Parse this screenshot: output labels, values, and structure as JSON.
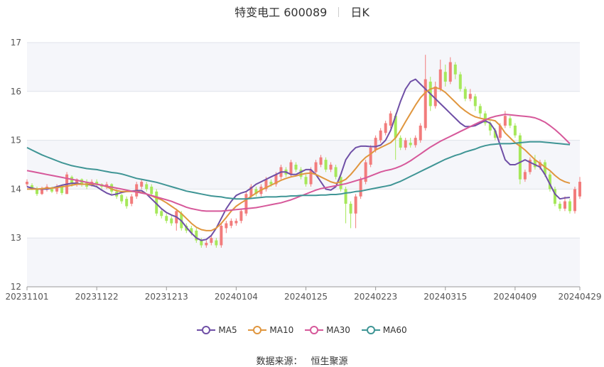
{
  "header": {
    "title": "特变电工 600089",
    "period": "日K"
  },
  "legend": {
    "ma5": "MA5",
    "ma10": "MA10",
    "ma30": "MA30",
    "ma60": "MA60"
  },
  "source": {
    "label": "数据来源：",
    "name": "恒生聚源"
  },
  "colors": {
    "up": "#f27c7c",
    "down": "#a6e85a",
    "ma5": "#6f4fa6",
    "ma10": "#e0963e",
    "ma30": "#d6589a",
    "ma60": "#3f9595"
  },
  "chart_data": {
    "type": "candlestick",
    "title": "特变电工 600089",
    "ylim": [
      12,
      17
    ],
    "yticks": [
      12,
      13,
      14,
      15,
      16,
      17
    ],
    "xticks": [
      "20231101",
      "20231122",
      "20231213",
      "20240104",
      "20240125",
      "20240223",
      "20240315",
      "20240409",
      "20240429"
    ],
    "x_tick_index": [
      0,
      14,
      28,
      42,
      56,
      70,
      84,
      98,
      111
    ],
    "series": [
      {
        "name": "MA5",
        "values": [
          14.05,
          14.02,
          14.0,
          14.0,
          14.0,
          14.02,
          14.05,
          14.08,
          14.1,
          14.12,
          14.12,
          14.1,
          14.1,
          14.08,
          14.05,
          13.98,
          13.92,
          13.88,
          13.9,
          13.93,
          13.95,
          13.96,
          13.97,
          13.97,
          13.9,
          13.8,
          13.7,
          13.6,
          13.52,
          13.47,
          13.43,
          13.35,
          13.22,
          13.1,
          13.0,
          12.95,
          12.97,
          13.05,
          13.2,
          13.4,
          13.6,
          13.75,
          13.87,
          13.92,
          13.95,
          14.02,
          14.1,
          14.15,
          14.2,
          14.25,
          14.3,
          14.35,
          14.35,
          14.3,
          14.3,
          14.35,
          14.4,
          14.4,
          14.3,
          14.15,
          14.0,
          13.98,
          14.05,
          14.3,
          14.6,
          14.75,
          14.85,
          14.88,
          14.88,
          14.87,
          14.87,
          14.9,
          15.0,
          15.2,
          15.5,
          15.8,
          16.05,
          16.2,
          16.25,
          16.15,
          16.05,
          15.95,
          15.85,
          15.75,
          15.65,
          15.55,
          15.45,
          15.35,
          15.28,
          15.28,
          15.3,
          15.35,
          15.4,
          15.35,
          15.2,
          14.9,
          14.6,
          14.5,
          14.5,
          14.55,
          14.6,
          14.55,
          14.5,
          14.45,
          14.3,
          14.1,
          13.9,
          13.8,
          13.82,
          13.83
        ]
      },
      {
        "name": "MA10",
        "values": [
          14.0,
          14.0,
          14.0,
          14.01,
          14.02,
          14.02,
          14.03,
          14.05,
          14.06,
          14.08,
          14.1,
          14.1,
          14.1,
          14.1,
          14.1,
          14.08,
          14.05,
          14.0,
          13.97,
          13.95,
          13.95,
          13.95,
          13.95,
          13.93,
          13.9,
          13.86,
          13.82,
          13.78,
          13.72,
          13.65,
          13.58,
          13.5,
          13.4,
          13.3,
          13.22,
          13.17,
          13.15,
          13.15,
          13.2,
          13.3,
          13.42,
          13.55,
          13.65,
          13.72,
          13.78,
          13.85,
          13.92,
          13.98,
          14.03,
          14.08,
          14.13,
          14.18,
          14.22,
          14.25,
          14.27,
          14.3,
          14.32,
          14.33,
          14.3,
          14.25,
          14.2,
          14.15,
          14.12,
          14.15,
          14.2,
          14.3,
          14.42,
          14.55,
          14.65,
          14.72,
          14.8,
          14.85,
          14.9,
          14.95,
          15.05,
          15.2,
          15.38,
          15.55,
          15.72,
          15.87,
          15.98,
          16.05,
          16.08,
          16.05,
          15.98,
          15.88,
          15.78,
          15.68,
          15.6,
          15.53,
          15.48,
          15.45,
          15.43,
          15.42,
          15.4,
          15.3,
          15.15,
          15.05,
          14.95,
          14.88,
          14.8,
          14.7,
          14.6,
          14.53,
          14.45,
          14.38,
          14.28,
          14.2,
          14.15,
          14.12
        ]
      },
      {
        "name": "MA30",
        "values": [
          14.38,
          14.36,
          14.34,
          14.32,
          14.3,
          14.28,
          14.26,
          14.24,
          14.22,
          14.2,
          14.18,
          14.16,
          14.14,
          14.12,
          14.1,
          14.08,
          14.06,
          14.04,
          14.02,
          14.0,
          13.98,
          13.96,
          13.94,
          13.92,
          13.9,
          13.87,
          13.84,
          13.81,
          13.78,
          13.75,
          13.71,
          13.67,
          13.63,
          13.6,
          13.58,
          13.56,
          13.55,
          13.55,
          13.55,
          13.55,
          13.56,
          13.57,
          13.58,
          13.59,
          13.6,
          13.61,
          13.62,
          13.64,
          13.66,
          13.68,
          13.7,
          13.72,
          13.75,
          13.78,
          13.82,
          13.86,
          13.9,
          13.94,
          13.98,
          14.01,
          14.03,
          14.05,
          14.07,
          14.09,
          14.11,
          14.14,
          14.17,
          14.2,
          14.23,
          14.27,
          14.31,
          14.35,
          14.38,
          14.4,
          14.43,
          14.47,
          14.52,
          14.58,
          14.65,
          14.72,
          14.79,
          14.86,
          14.92,
          14.98,
          15.03,
          15.08,
          15.13,
          15.18,
          15.23,
          15.28,
          15.33,
          15.38,
          15.42,
          15.46,
          15.49,
          15.51,
          15.53,
          15.52,
          15.51,
          15.5,
          15.49,
          15.48,
          15.46,
          15.42,
          15.37,
          15.3,
          15.22,
          15.13,
          15.03,
          14.93
        ]
      },
      {
        "name": "MA60",
        "values": [
          14.85,
          14.8,
          14.75,
          14.7,
          14.66,
          14.62,
          14.58,
          14.54,
          14.51,
          14.48,
          14.46,
          14.44,
          14.42,
          14.41,
          14.4,
          14.38,
          14.36,
          14.34,
          14.33,
          14.31,
          14.28,
          14.25,
          14.22,
          14.2,
          14.18,
          14.16,
          14.14,
          14.11,
          14.08,
          14.05,
          14.02,
          13.99,
          13.96,
          13.94,
          13.92,
          13.9,
          13.88,
          13.86,
          13.85,
          13.84,
          13.82,
          13.81,
          13.8,
          13.8,
          13.8,
          13.81,
          13.82,
          13.83,
          13.84,
          13.84,
          13.84,
          13.85,
          13.85,
          13.86,
          13.86,
          13.87,
          13.87,
          13.87,
          13.87,
          13.88,
          13.88,
          13.89,
          13.89,
          13.9,
          13.92,
          13.93,
          13.95,
          13.96,
          13.98,
          14.0,
          14.02,
          14.04,
          14.06,
          14.08,
          14.12,
          14.16,
          14.21,
          14.26,
          14.31,
          14.36,
          14.41,
          14.46,
          14.51,
          14.56,
          14.61,
          14.65,
          14.69,
          14.72,
          14.76,
          14.79,
          14.82,
          14.86,
          14.89,
          14.91,
          14.92,
          14.93,
          14.93,
          14.93,
          14.94,
          14.95,
          14.96,
          14.97,
          14.97,
          14.97,
          14.96,
          14.95,
          14.94,
          14.93,
          14.92,
          14.91
        ]
      }
    ],
    "candles": [
      [
        14.1,
        14.15,
        14.05,
        14.2
      ],
      [
        14.08,
        14.02,
        13.98,
        14.12
      ],
      [
        14.0,
        13.9,
        13.86,
        14.05
      ],
      [
        13.9,
        14.02,
        13.88,
        14.05
      ],
      [
        14.0,
        14.05,
        13.95,
        14.1
      ],
      [
        14.0,
        13.95,
        13.92,
        14.05
      ],
      [
        13.95,
        14.05,
        13.9,
        14.1
      ],
      [
        14.05,
        13.92,
        13.88,
        14.08
      ],
      [
        13.9,
        14.3,
        13.9,
        14.35
      ],
      [
        14.25,
        14.1,
        14.05,
        14.28
      ],
      [
        14.1,
        14.2,
        14.05,
        14.22
      ],
      [
        14.2,
        14.1,
        14.05,
        14.22
      ],
      [
        14.15,
        14.05,
        14.0,
        14.2
      ],
      [
        14.1,
        14.15,
        14.05,
        14.2
      ],
      [
        14.15,
        14.1,
        14.05,
        14.2
      ],
      [
        14.1,
        14.05,
        14.0,
        14.12
      ],
      [
        14.05,
        14.1,
        14.0,
        14.15
      ],
      [
        14.1,
        13.95,
        13.9,
        14.12
      ],
      [
        13.95,
        13.85,
        13.8,
        14.0
      ],
      [
        13.88,
        13.75,
        13.7,
        13.9
      ],
      [
        13.8,
        13.65,
        13.6,
        13.85
      ],
      [
        13.7,
        13.85,
        13.65,
        13.9
      ],
      [
        13.85,
        14.1,
        13.8,
        14.15
      ],
      [
        14.05,
        14.15,
        14.0,
        14.2
      ],
      [
        14.1,
        14.0,
        13.95,
        14.15
      ],
      [
        14.05,
        13.9,
        13.85,
        14.1
      ],
      [
        13.95,
        13.5,
        13.45,
        14.0
      ],
      [
        13.55,
        13.45,
        13.4,
        13.6
      ],
      [
        13.45,
        13.35,
        13.3,
        13.5
      ],
      [
        13.4,
        13.3,
        13.25,
        13.45
      ],
      [
        13.3,
        13.55,
        13.15,
        13.6
      ],
      [
        13.5,
        13.2,
        13.15,
        13.55
      ],
      [
        13.25,
        13.15,
        13.1,
        13.3
      ],
      [
        13.2,
        13.1,
        13.05,
        13.25
      ],
      [
        13.15,
        12.95,
        12.9,
        13.2
      ],
      [
        12.95,
        12.85,
        12.8,
        13.0
      ],
      [
        12.85,
        12.9,
        12.8,
        12.95
      ],
      [
        12.9,
        13.0,
        12.85,
        13.05
      ],
      [
        12.95,
        12.85,
        12.8,
        13.0
      ],
      [
        12.85,
        13.25,
        12.8,
        13.3
      ],
      [
        13.2,
        13.3,
        13.1,
        13.35
      ],
      [
        13.25,
        13.35,
        13.2,
        13.4
      ],
      [
        13.3,
        13.35,
        13.25,
        13.4
      ],
      [
        13.35,
        13.55,
        13.3,
        13.6
      ],
      [
        13.5,
        13.9,
        13.45,
        13.95
      ],
      [
        13.85,
        14.05,
        13.8,
        14.1
      ],
      [
        14.0,
        13.9,
        13.85,
        14.05
      ],
      [
        13.9,
        14.05,
        13.85,
        14.1
      ],
      [
        14.0,
        14.2,
        13.95,
        14.25
      ],
      [
        14.15,
        14.1,
        14.05,
        14.2
      ],
      [
        14.1,
        14.3,
        14.05,
        14.35
      ],
      [
        14.25,
        14.45,
        14.2,
        14.5
      ],
      [
        14.4,
        14.3,
        14.25,
        14.45
      ],
      [
        14.3,
        14.55,
        14.25,
        14.6
      ],
      [
        14.5,
        14.4,
        14.35,
        14.55
      ],
      [
        14.4,
        14.25,
        14.2,
        14.45
      ],
      [
        14.25,
        14.1,
        14.05,
        14.3
      ],
      [
        14.1,
        14.4,
        14.05,
        14.45
      ],
      [
        14.35,
        14.55,
        14.3,
        14.6
      ],
      [
        14.5,
        14.65,
        14.45,
        14.7
      ],
      [
        14.6,
        14.4,
        14.35,
        14.65
      ],
      [
        14.4,
        14.5,
        14.35,
        14.55
      ],
      [
        14.45,
        14.25,
        14.2,
        14.5
      ],
      [
        14.25,
        14.0,
        13.95,
        14.3
      ],
      [
        14.0,
        13.7,
        13.3,
        14.05
      ],
      [
        13.7,
        13.5,
        13.2,
        13.75
      ],
      [
        13.5,
        13.85,
        13.2,
        13.9
      ],
      [
        13.85,
        14.2,
        13.8,
        14.25
      ],
      [
        14.15,
        14.55,
        14.1,
        14.6
      ],
      [
        14.5,
        14.85,
        14.45,
        14.9
      ],
      [
        14.8,
        15.05,
        14.75,
        15.1
      ],
      [
        15.0,
        15.2,
        14.95,
        15.25
      ],
      [
        15.15,
        15.35,
        15.1,
        15.4
      ],
      [
        15.3,
        15.55,
        15.25,
        15.6
      ],
      [
        15.5,
        15.05,
        14.6,
        15.55
      ],
      [
        15.05,
        14.85,
        14.8,
        15.1
      ],
      [
        14.85,
        15.0,
        14.8,
        15.05
      ],
      [
        14.95,
        14.9,
        14.85,
        15.05
      ],
      [
        14.9,
        15.05,
        14.85,
        15.1
      ],
      [
        15.0,
        15.3,
        14.95,
        15.35
      ],
      [
        15.25,
        16.25,
        15.2,
        16.75
      ],
      [
        16.2,
        15.7,
        15.6,
        16.3
      ],
      [
        15.7,
        16.1,
        15.65,
        16.2
      ],
      [
        16.05,
        16.45,
        16.0,
        16.65
      ],
      [
        16.4,
        16.2,
        16.1,
        16.55
      ],
      [
        16.2,
        16.6,
        16.15,
        16.7
      ],
      [
        16.55,
        16.35,
        16.25,
        16.6
      ],
      [
        16.35,
        16.05,
        16.0,
        16.4
      ],
      [
        16.05,
        15.85,
        15.8,
        16.1
      ],
      [
        15.85,
        15.95,
        15.8,
        16.05
      ],
      [
        15.9,
        15.7,
        15.6,
        15.95
      ],
      [
        15.7,
        15.55,
        15.45,
        15.75
      ],
      [
        15.55,
        15.35,
        15.3,
        15.6
      ],
      [
        15.35,
        15.2,
        15.1,
        15.4
      ],
      [
        15.2,
        15.05,
        15.0,
        15.25
      ],
      [
        15.05,
        15.3,
        15.0,
        15.35
      ],
      [
        15.3,
        15.5,
        15.25,
        15.6
      ],
      [
        15.45,
        15.3,
        15.25,
        15.5
      ],
      [
        15.3,
        15.1,
        15.05,
        15.35
      ],
      [
        15.1,
        14.2,
        14.1,
        15.15
      ],
      [
        14.2,
        14.35,
        14.15,
        14.4
      ],
      [
        14.35,
        14.6,
        14.3,
        14.65
      ],
      [
        14.6,
        14.45,
        14.4,
        14.7
      ],
      [
        14.45,
        14.55,
        14.4,
        14.6
      ],
      [
        14.55,
        14.3,
        14.25,
        14.6
      ],
      [
        14.3,
        14.0,
        13.95,
        14.35
      ],
      [
        14.0,
        13.7,
        13.65,
        14.05
      ],
      [
        13.7,
        13.6,
        13.55,
        13.75
      ],
      [
        13.6,
        13.75,
        13.55,
        13.85
      ],
      [
        13.75,
        13.55,
        13.5,
        13.8
      ],
      [
        13.55,
        14.0,
        13.5,
        14.05
      ],
      [
        13.85,
        14.15,
        13.8,
        14.25
      ]
    ]
  }
}
